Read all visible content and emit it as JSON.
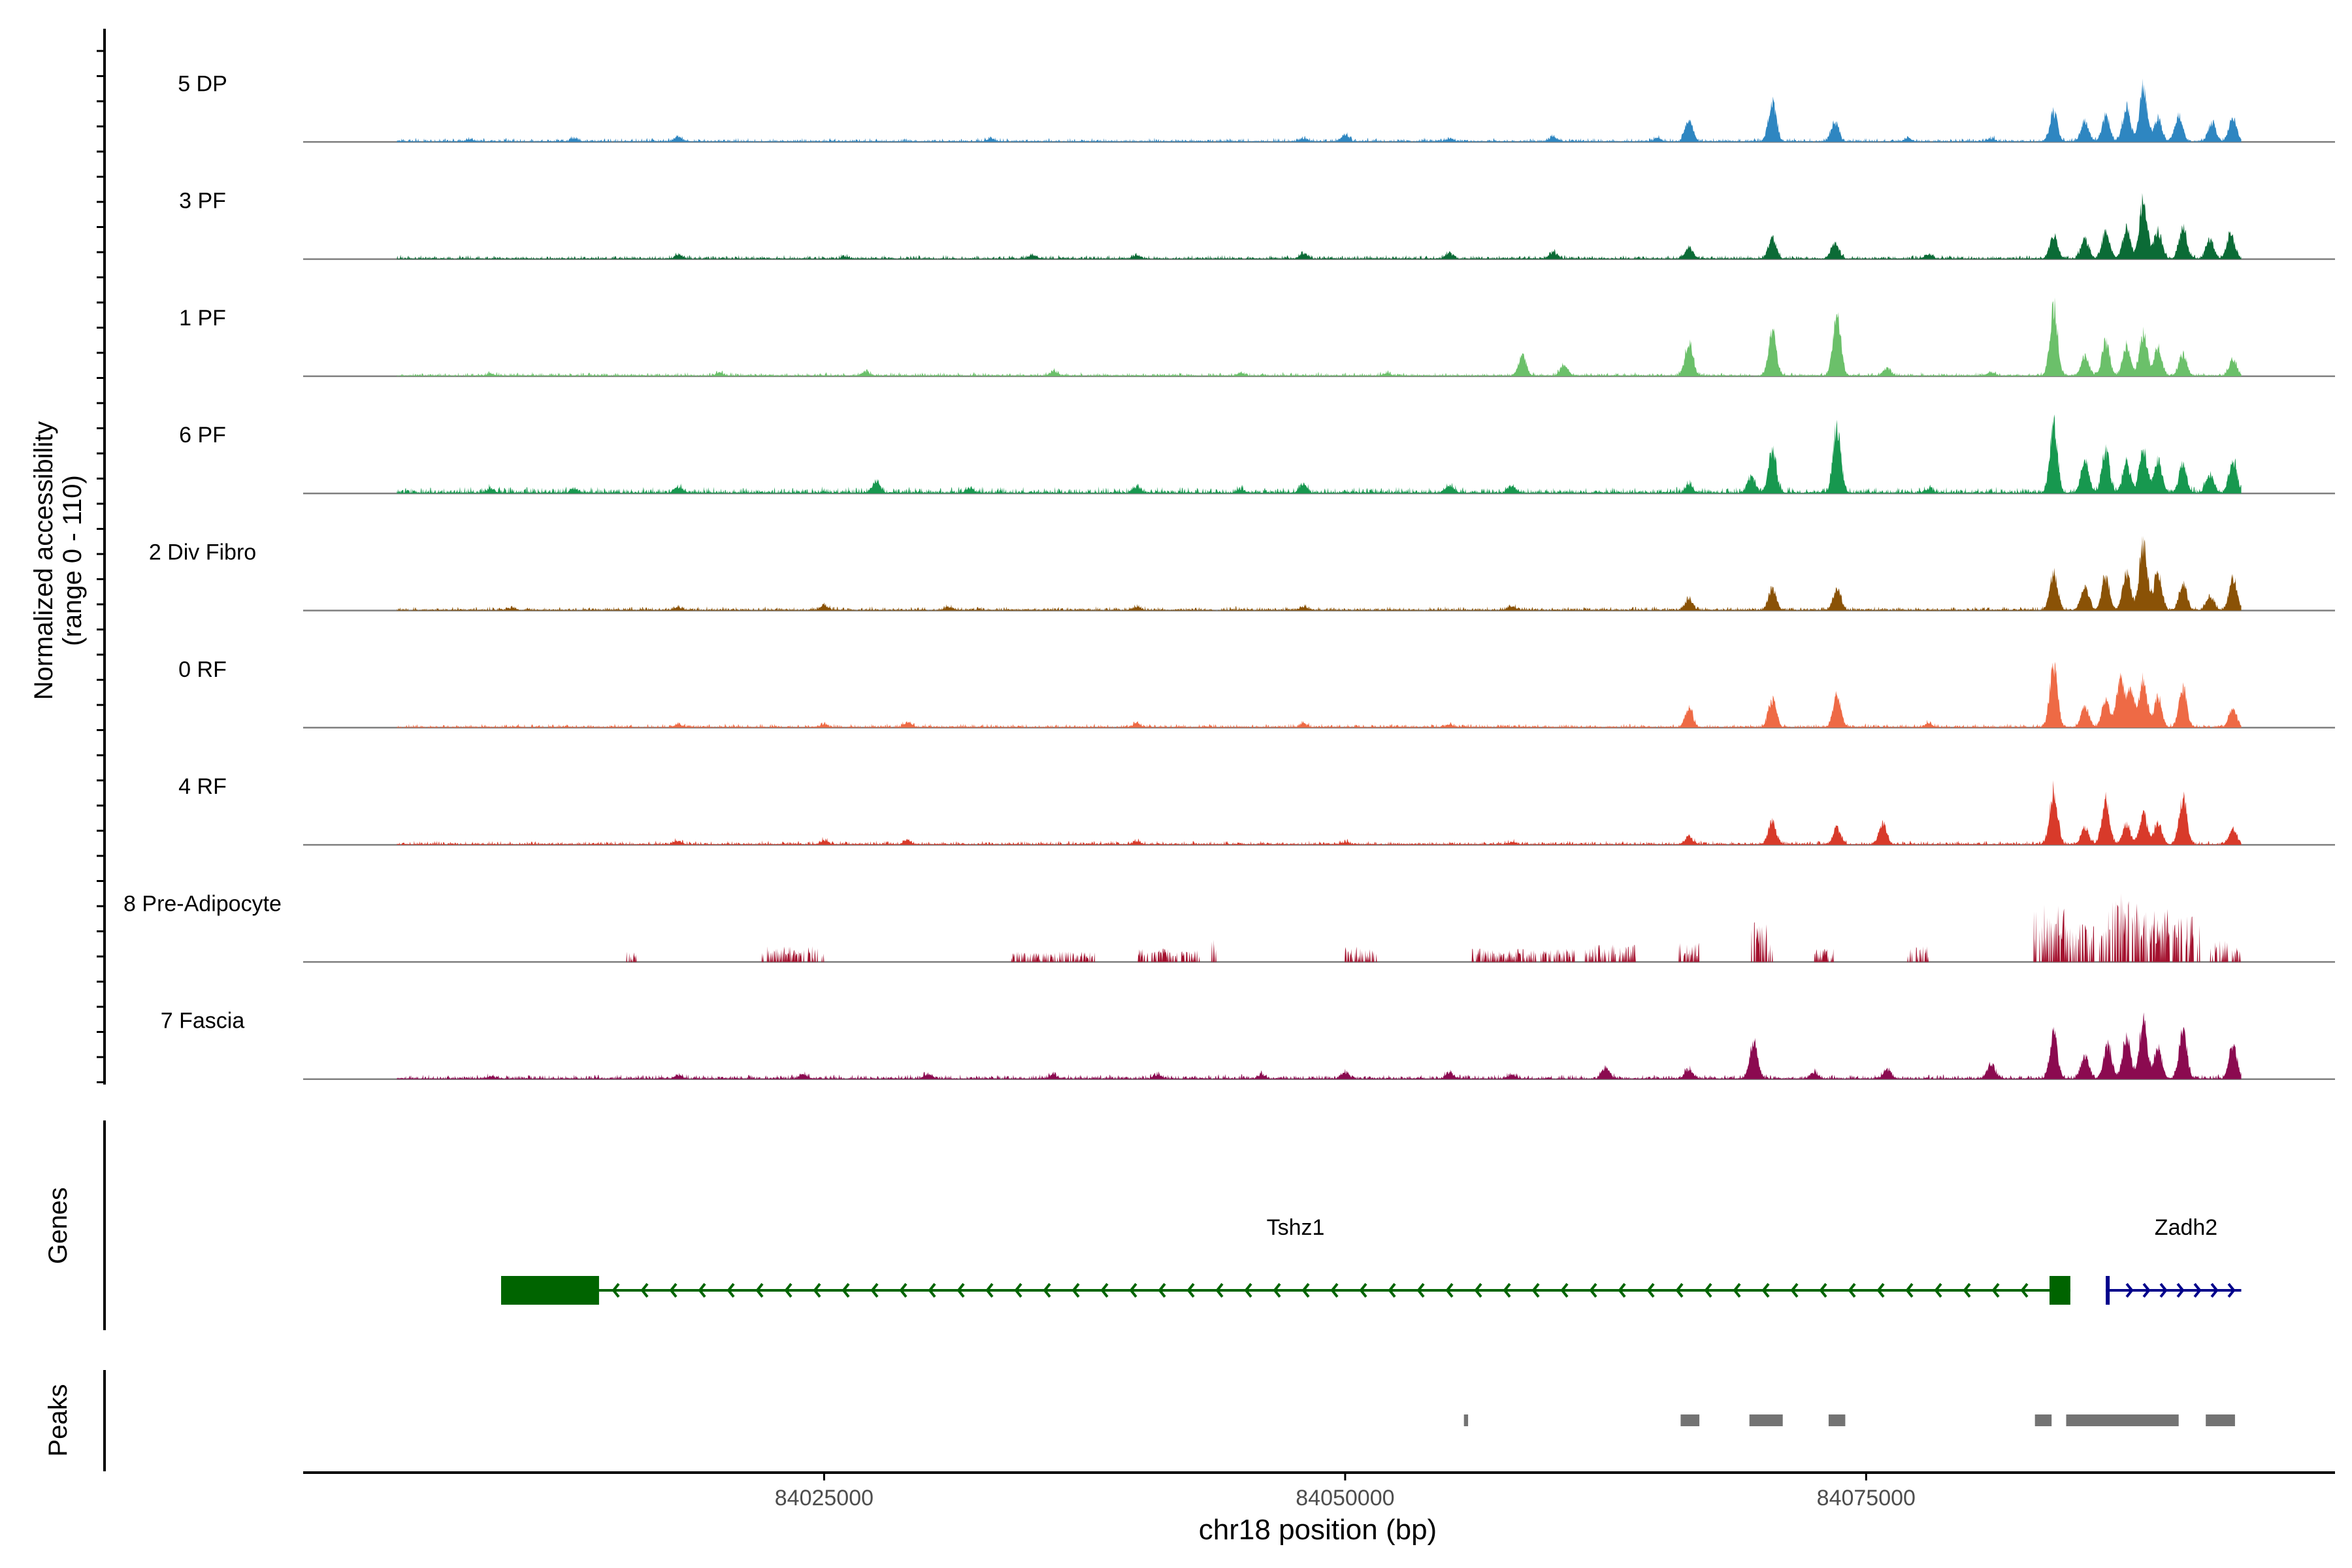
{
  "chart_data": {
    "type": "area",
    "title": "",
    "y_axis_label": [
      "Normalized accessibility",
      "(range 0 - 110)"
    ],
    "y_range": [
      0,
      110
    ],
    "x_axis_label": "chr18 position (bp)",
    "x_range": [
      84000000,
      84097500
    ],
    "x_ticks": [
      {
        "value": 84025000,
        "label": "84025000"
      },
      {
        "value": 84050000,
        "label": "84050000"
      },
      {
        "value": 84075000,
        "label": "84075000"
      }
    ],
    "region": {
      "start": 84004500,
      "end": 84093000
    },
    "tracks": [
      {
        "name": "5 DP",
        "color": "#2E86C1",
        "background": 2.5,
        "peaks": [
          [
            84008000,
            3
          ],
          [
            84013000,
            4
          ],
          [
            84018000,
            6
          ],
          [
            84033000,
            4
          ],
          [
            84048000,
            4
          ],
          [
            84050000,
            9
          ],
          [
            84055000,
            4
          ],
          [
            84060000,
            6
          ],
          [
            84065000,
            5
          ],
          [
            84066500,
            30
          ],
          [
            84070500,
            55
          ],
          [
            84073500,
            25
          ],
          [
            84077000,
            4
          ],
          [
            84081000,
            4
          ],
          [
            84084000,
            38
          ],
          [
            84085500,
            25
          ],
          [
            84086500,
            32
          ],
          [
            84087500,
            45
          ],
          [
            84088300,
            70
          ],
          [
            84089000,
            30
          ],
          [
            84090000,
            35
          ],
          [
            84091600,
            25
          ],
          [
            84092600,
            30
          ]
        ]
      },
      {
        "name": "3 PF",
        "color": "#0B6B36",
        "background": 2.5,
        "peaks": [
          [
            84018000,
            5
          ],
          [
            84026000,
            3
          ],
          [
            84035000,
            5
          ],
          [
            84040000,
            4
          ],
          [
            84048000,
            7
          ],
          [
            84055000,
            7
          ],
          [
            84060000,
            8
          ],
          [
            84066500,
            15
          ],
          [
            84070500,
            28
          ],
          [
            84073500,
            20
          ],
          [
            84078000,
            6
          ],
          [
            84084000,
            32
          ],
          [
            84085500,
            26
          ],
          [
            84086500,
            35
          ],
          [
            84087500,
            40
          ],
          [
            84088300,
            78
          ],
          [
            84089000,
            38
          ],
          [
            84090200,
            42
          ],
          [
            84091500,
            25
          ],
          [
            84092500,
            33
          ]
        ]
      },
      {
        "name": "1 PF",
        "color": "#6BC06A",
        "background": 2.5,
        "peaks": [
          [
            84009000,
            3
          ],
          [
            84020000,
            4
          ],
          [
            84027000,
            5
          ],
          [
            84036000,
            6
          ],
          [
            84045000,
            4
          ],
          [
            84052000,
            4
          ],
          [
            84058500,
            28
          ],
          [
            84060500,
            14
          ],
          [
            84066500,
            45
          ],
          [
            84070500,
            58
          ],
          [
            84073600,
            85
          ],
          [
            84076000,
            10
          ],
          [
            84081000,
            5
          ],
          [
            84084000,
            95
          ],
          [
            84085500,
            28
          ],
          [
            84086500,
            45
          ],
          [
            84087500,
            40
          ],
          [
            84088300,
            55
          ],
          [
            84089000,
            38
          ],
          [
            84090200,
            28
          ],
          [
            84092600,
            22
          ]
        ]
      },
      {
        "name": "6 PF",
        "color": "#17984F",
        "background": 4,
        "peaks": [
          [
            84009000,
            6
          ],
          [
            84013000,
            5
          ],
          [
            84018000,
            8
          ],
          [
            84027500,
            15
          ],
          [
            84032000,
            6
          ],
          [
            84040000,
            8
          ],
          [
            84045000,
            5
          ],
          [
            84048000,
            10
          ],
          [
            84055000,
            10
          ],
          [
            84058000,
            8
          ],
          [
            84066500,
            10
          ],
          [
            84069500,
            22
          ],
          [
            84070500,
            58
          ],
          [
            84073600,
            90
          ],
          [
            84078000,
            5
          ],
          [
            84084000,
            88
          ],
          [
            84085500,
            42
          ],
          [
            84086500,
            55
          ],
          [
            84087500,
            40
          ],
          [
            84088300,
            60
          ],
          [
            84089000,
            45
          ],
          [
            84090200,
            38
          ],
          [
            84091500,
            25
          ],
          [
            84092600,
            42
          ]
        ]
      },
      {
        "name": "2 Div Fibro",
        "color": "#8A5206",
        "background": 2.5,
        "peaks": [
          [
            84010000,
            3
          ],
          [
            84018000,
            4
          ],
          [
            84025000,
            6
          ],
          [
            84031000,
            4
          ],
          [
            84040000,
            4
          ],
          [
            84048000,
            4
          ],
          [
            84058000,
            5
          ],
          [
            84066500,
            15
          ],
          [
            84070500,
            28
          ],
          [
            84073600,
            30
          ],
          [
            84084000,
            50
          ],
          [
            84085500,
            32
          ],
          [
            84086500,
            45
          ],
          [
            84087500,
            50
          ],
          [
            84088300,
            92
          ],
          [
            84089000,
            50
          ],
          [
            84090200,
            35
          ],
          [
            84091500,
            18
          ],
          [
            84092600,
            45
          ]
        ]
      },
      {
        "name": "0 RF",
        "color": "#EE6A45",
        "background": 2.5,
        "peaks": [
          [
            84018000,
            4
          ],
          [
            84025000,
            4
          ],
          [
            84029000,
            7
          ],
          [
            84040000,
            5
          ],
          [
            84048000,
            4
          ],
          [
            84055000,
            4
          ],
          [
            84066500,
            25
          ],
          [
            84070500,
            38
          ],
          [
            84073600,
            42
          ],
          [
            84078000,
            5
          ],
          [
            84084000,
            83
          ],
          [
            84085500,
            28
          ],
          [
            84086500,
            35
          ],
          [
            84087200,
            65
          ],
          [
            84087700,
            50
          ],
          [
            84088300,
            62
          ],
          [
            84089000,
            40
          ],
          [
            84090200,
            52
          ],
          [
            84092600,
            25
          ]
        ]
      },
      {
        "name": "4 RF",
        "color": "#D83A2A",
        "background": 2.5,
        "peaks": [
          [
            84018000,
            4
          ],
          [
            84025000,
            5
          ],
          [
            84029000,
            6
          ],
          [
            84040000,
            4
          ],
          [
            84050000,
            3
          ],
          [
            84058000,
            3
          ],
          [
            84066500,
            10
          ],
          [
            84070500,
            30
          ],
          [
            84073600,
            22
          ],
          [
            84075800,
            30
          ],
          [
            84084000,
            72
          ],
          [
            84085500,
            22
          ],
          [
            84086500,
            62
          ],
          [
            84087500,
            25
          ],
          [
            84088300,
            42
          ],
          [
            84089000,
            30
          ],
          [
            84090200,
            63
          ],
          [
            84092600,
            20
          ]
        ]
      },
      {
        "name": "8 Pre-Adipocyte",
        "color": "#A3112E",
        "clusters": [
          [
            84015500,
            84016000,
            12
          ],
          [
            84022000,
            84025000,
            18
          ],
          [
            84034000,
            84038000,
            12
          ],
          [
            84040000,
            84043000,
            15
          ],
          [
            84043600,
            84043800,
            25
          ],
          [
            84050000,
            84051500,
            18
          ],
          [
            84056000,
            84061000,
            15
          ],
          [
            84061500,
            84064000,
            20
          ],
          [
            84066000,
            84067000,
            22
          ],
          [
            84069500,
            84070500,
            45
          ],
          [
            84072500,
            84073500,
            15
          ],
          [
            84077000,
            84078000,
            18
          ],
          [
            84083000,
            84084500,
            65
          ],
          [
            84084500,
            84086500,
            45
          ],
          [
            84086500,
            84088000,
            78
          ],
          [
            84088000,
            84089500,
            60
          ],
          [
            84089500,
            84091000,
            55
          ],
          [
            84091500,
            84093000,
            25
          ]
        ]
      },
      {
        "name": "7 Fascia",
        "color": "#8B0A50",
        "background": 3,
        "peaks": [
          [
            84009000,
            3
          ],
          [
            84018000,
            4
          ],
          [
            84024000,
            6
          ],
          [
            84030000,
            6
          ],
          [
            84036000,
            5
          ],
          [
            84041000,
            5
          ],
          [
            84046000,
            5
          ],
          [
            84050000,
            8
          ],
          [
            84055000,
            8
          ],
          [
            84058000,
            5
          ],
          [
            84062500,
            15
          ],
          [
            84066500,
            12
          ],
          [
            84069600,
            50
          ],
          [
            84072500,
            8
          ],
          [
            84076000,
            12
          ],
          [
            84081000,
            20
          ],
          [
            84084000,
            60
          ],
          [
            84085500,
            30
          ],
          [
            84086600,
            45
          ],
          [
            84087500,
            55
          ],
          [
            84088300,
            75
          ],
          [
            84089000,
            40
          ],
          [
            84090200,
            65
          ],
          [
            84092600,
            45
          ]
        ]
      }
    ],
    "genes_label": "Genes",
    "genes": [
      {
        "name": "Tshz1",
        "strand": "-",
        "start": 84009500,
        "end": 84084800,
        "exons": [
          [
            84009500,
            84014200
          ],
          [
            84083800,
            84084800
          ]
        ],
        "color": "#006400"
      },
      {
        "name": "Zadh2",
        "strand": "+",
        "start": 84086500,
        "end": 84093000,
        "exons": [
          [
            84086500,
            84086700
          ]
        ],
        "color": "#00008B"
      }
    ],
    "peaks_label": "Peaks",
    "peaks": [
      [
        84055700,
        84055900
      ],
      [
        84066100,
        84067000
      ],
      [
        84069400,
        84071000
      ],
      [
        84073200,
        84074000
      ],
      [
        84083100,
        84083900
      ],
      [
        84084600,
        84090000
      ],
      [
        84091300,
        84092700
      ]
    ],
    "peaks_color": "#737373"
  }
}
